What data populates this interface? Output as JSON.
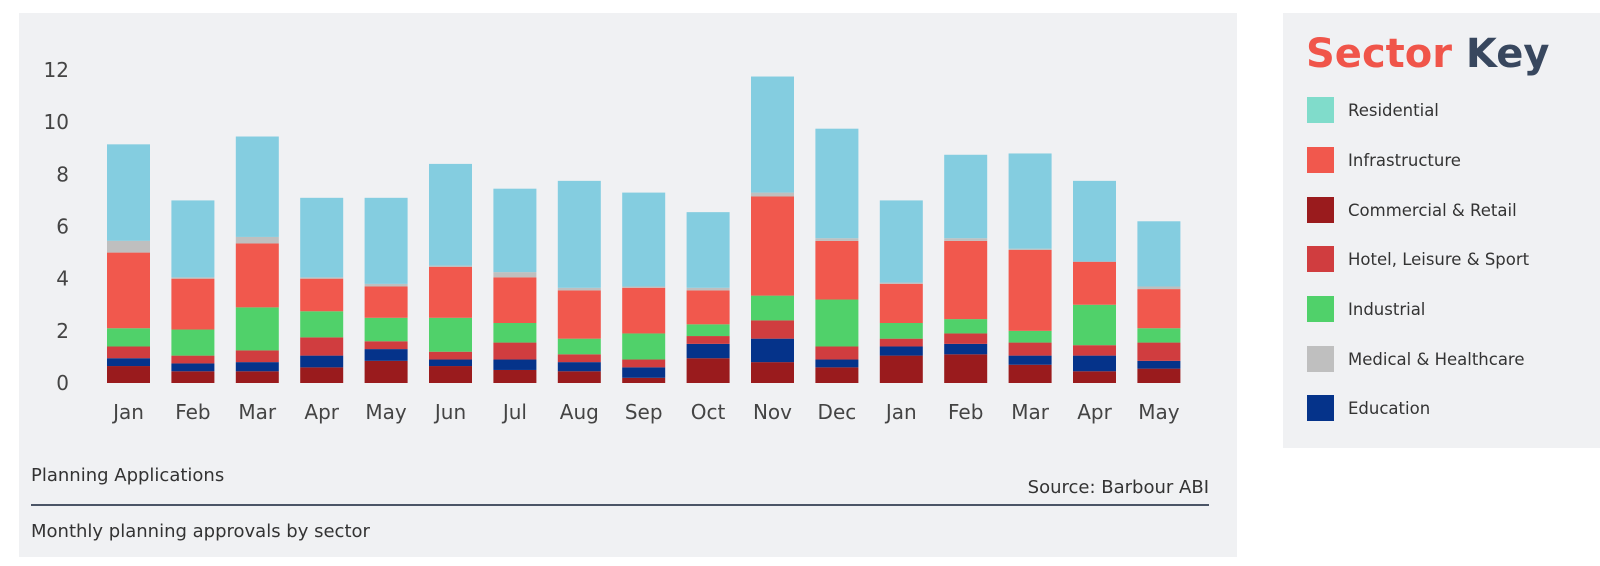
{
  "chart_data": {
    "type": "bar",
    "stacked": true,
    "title": "Planning Applications",
    "subtitle": "Monthly planning approvals by sector",
    "source": "Source: Barbour ABI",
    "xlabel": "",
    "ylabel": "",
    "ylim": [
      0,
      12
    ],
    "yticks": [
      "0",
      "2",
      "4",
      "6",
      "8",
      "10",
      "12"
    ],
    "grid": false,
    "legend_position": "right",
    "categories": [
      "Jan",
      "Feb",
      "Mar",
      "Apr",
      "May",
      "Jun",
      "Jul",
      "Aug",
      "Sep",
      "Oct",
      "Nov",
      "Dec",
      "Jan",
      "Feb",
      "Mar",
      "Apr",
      "May"
    ],
    "series": [
      {
        "name": "Commercial & Retail",
        "color": "#9a1b1d",
        "values": [
          0.65,
          0.45,
          0.45,
          0.6,
          0.85,
          0.65,
          0.5,
          0.45,
          0.2,
          0.95,
          0.8,
          0.6,
          1.05,
          1.1,
          0.7,
          0.45,
          0.55
        ]
      },
      {
        "name": "Education",
        "color": "#05338a",
        "values": [
          0.3,
          0.3,
          0.35,
          0.45,
          0.45,
          0.25,
          0.4,
          0.35,
          0.4,
          0.55,
          0.9,
          0.3,
          0.35,
          0.4,
          0.35,
          0.6,
          0.3
        ]
      },
      {
        "name": "Hotel, Leisure & Sport",
        "color": "#d03d3f",
        "values": [
          0.45,
          0.3,
          0.45,
          0.7,
          0.3,
          0.3,
          0.65,
          0.3,
          0.3,
          0.3,
          0.7,
          0.5,
          0.3,
          0.4,
          0.5,
          0.4,
          0.7
        ]
      },
      {
        "name": "Industrial",
        "color": "#50d16a",
        "values": [
          0.7,
          1.0,
          1.65,
          1.0,
          0.9,
          1.3,
          0.75,
          0.6,
          1.0,
          0.45,
          0.95,
          1.8,
          0.6,
          0.55,
          0.45,
          1.55,
          0.55
        ]
      },
      {
        "name": "Infrastructure",
        "color": "#f1584d",
        "values": [
          2.9,
          1.95,
          2.45,
          1.25,
          1.2,
          1.95,
          1.75,
          1.85,
          1.75,
          1.3,
          3.8,
          2.25,
          1.5,
          3.0,
          3.1,
          1.65,
          1.5
        ]
      },
      {
        "name": "Medical & Healthcare",
        "color": "#bfbfbf",
        "values": [
          0.45,
          0.05,
          0.25,
          0.05,
          0.1,
          0.05,
          0.2,
          0.1,
          0.05,
          0.1,
          0.15,
          0.1,
          0.05,
          0.1,
          0.05,
          0.0,
          0.1
        ]
      },
      {
        "name": "Residential",
        "color": "#84cde0",
        "values": [
          3.7,
          2.95,
          3.85,
          3.05,
          3.3,
          3.9,
          3.2,
          4.1,
          3.6,
          2.9,
          4.45,
          4.2,
          3.15,
          3.2,
          3.65,
          3.1,
          2.5
        ]
      }
    ]
  },
  "key": {
    "title_word1": "Sector",
    "title_word2": "Key",
    "items": [
      {
        "label": "Residential",
        "color": "#80dccb"
      },
      {
        "label": "Infrastructure",
        "color": "#f1584d"
      },
      {
        "label": "Commercial & Retail",
        "color": "#9a1b1d"
      },
      {
        "label": "Hotel, Leisure & Sport",
        "color": "#d03d3f"
      },
      {
        "label": "Industrial",
        "color": "#50d16a"
      },
      {
        "label": "Medical & Healthcare",
        "color": "#bfbfbf"
      },
      {
        "label": "Education",
        "color": "#05338a"
      }
    ]
  },
  "colors": {
    "panel_bg": "#f0f1f3",
    "title_accent": "#f0554a",
    "title_dark": "#38475e"
  }
}
